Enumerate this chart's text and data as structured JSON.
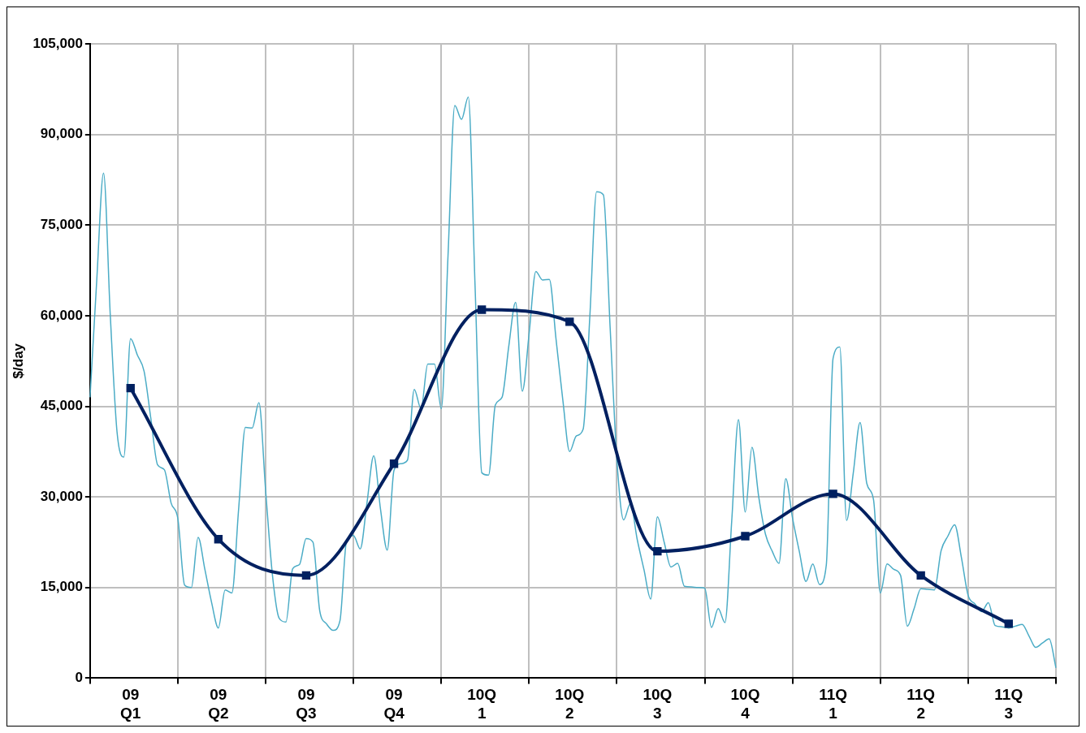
{
  "chart_data": {
    "type": "line",
    "ylabel": "$/day",
    "categories": [
      null,
      null,
      null,
      null,
      null,
      null,
      "09 Q1",
      null,
      null,
      null,
      null,
      null,
      null,
      null,
      null,
      null,
      null,
      null,
      null,
      "09 Q2",
      null,
      null,
      null,
      null,
      null,
      null,
      null,
      null,
      null,
      null,
      null,
      null,
      "09 Q3",
      null,
      null,
      null,
      null,
      null,
      null,
      null,
      null,
      null,
      null,
      null,
      null,
      "09 Q4",
      null,
      null,
      null,
      null,
      null,
      null,
      null,
      null,
      null,
      null,
      null,
      null,
      "10Q 1",
      null,
      null,
      null,
      null,
      null,
      null,
      null,
      null,
      null,
      null,
      null,
      null,
      "10Q 2",
      null,
      null,
      null,
      null,
      null,
      null,
      null,
      null,
      null,
      null,
      null,
      null,
      "10Q 3",
      null,
      null,
      null,
      null,
      null,
      null,
      null,
      null,
      null,
      null,
      null,
      null,
      "10Q 4",
      null,
      null,
      null,
      null,
      null,
      null,
      null,
      null,
      null,
      null,
      null,
      null,
      "11Q 1",
      null,
      null,
      null,
      null,
      null,
      null,
      null,
      null,
      null,
      null,
      null,
      null,
      "11Q 2",
      null,
      null,
      null,
      null,
      null,
      null,
      null,
      null,
      null,
      null,
      null,
      null,
      "11Q 3",
      null,
      null,
      null,
      null,
      null,
      null,
      null
    ],
    "ylim": [
      0,
      105000
    ],
    "yticks": [
      {
        "value": 0,
        "label": "0"
      },
      {
        "value": 15000,
        "label": "15,000"
      },
      {
        "value": 30000,
        "label": "30,000"
      },
      {
        "value": 45000,
        "label": "45,000"
      },
      {
        "value": 60000,
        "label": "60,000"
      },
      {
        "value": 75000,
        "label": "75,000"
      },
      {
        "value": 90000,
        "label": "90,000"
      },
      {
        "value": 105000,
        "label": "105,000"
      }
    ],
    "grid": true,
    "series": [
      {
        "color": "#4bacc6",
        "marker": "none",
        "values": [
          46500,
          66000,
          83600,
          60000,
          40700,
          36600,
          56200,
          53500,
          50800,
          43000,
          35300,
          34500,
          29000,
          26400,
          15400,
          15000,
          23300,
          18000,
          12500,
          8300,
          14600,
          14100,
          28000,
          41500,
          41400,
          45600,
          31000,
          17100,
          9900,
          9300,
          18100,
          18800,
          23100,
          22500,
          11200,
          9000,
          7900,
          9500,
          22900,
          23600,
          21400,
          29000,
          36800,
          28000,
          21200,
          34400,
          35500,
          36100,
          47800,
          44600,
          52000,
          52000,
          44600,
          70000,
          94800,
          92500,
          96200,
          65000,
          34000,
          33600,
          45200,
          46500,
          55000,
          62200,
          47500,
          57000,
          67300,
          65900,
          66000,
          56000,
          46000,
          37500,
          40100,
          41200,
          60000,
          80500,
          80000,
          58000,
          36100,
          26200,
          28900,
          23000,
          18000,
          13100,
          26700,
          22500,
          18400,
          19000,
          15200,
          15100,
          15000,
          14900,
          8400,
          11500,
          9200,
          26000,
          42800,
          27500,
          38200,
          30000,
          23800,
          21000,
          19000,
          33000,
          26500,
          21000,
          16000,
          18900,
          15500,
          18700,
          52900,
          54800,
          26100,
          34000,
          42300,
          32200,
          29500,
          14100,
          18900,
          18000,
          17000,
          8600,
          11500,
          14800,
          14700,
          14600,
          21100,
          23500,
          25400,
          20000,
          13700,
          12300,
          11000,
          12500,
          8700,
          8500,
          8300,
          8600,
          8900,
          7000,
          5100,
          5800,
          6500,
          1700
        ]
      },
      {
        "color": "#002060",
        "marker": "square",
        "x": [
          "09 Q1",
          "09 Q2",
          "09 Q3",
          "09 Q4",
          "10Q 1",
          "10Q 2",
          "10Q 3",
          "10Q 4",
          "11Q 1",
          "11Q 2",
          "11Q 3"
        ],
        "values": [
          48000,
          23000,
          17000,
          35500,
          61000,
          59000,
          21000,
          23500,
          30500,
          17000,
          9000
        ]
      }
    ]
  }
}
